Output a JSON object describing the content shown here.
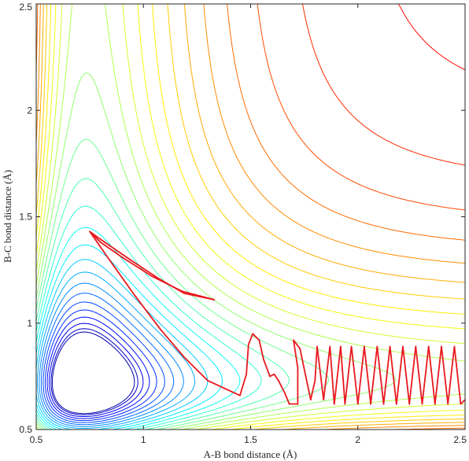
{
  "chart_data": {
    "type": "contour",
    "title": "",
    "xlabel": "A-B bond distance (Å)",
    "ylabel": "B-C bond distance (Å)",
    "xlim": [
      0.5,
      2.5
    ],
    "ylim": [
      0.5,
      2.5
    ],
    "xticks": [
      0.5,
      1,
      1.5,
      2,
      2.5
    ],
    "yticks": [
      0.5,
      1,
      1.5,
      2,
      2.5
    ],
    "x_tick_labels": [
      "0.5",
      "1",
      "1.5",
      "2",
      "2.5"
    ],
    "y_tick_labels": [
      "0.5",
      "1",
      "1.5",
      "2",
      "2.5"
    ],
    "grid": false,
    "colormap": "jet",
    "contour_line_color": "#1e3a8a",
    "trajectory_color": "#e8181e",
    "trajectory": [
      [
        0.75,
        1.43
      ],
      [
        0.82,
        1.38
      ],
      [
        0.95,
        1.29
      ],
      [
        1.07,
        1.21
      ],
      [
        1.19,
        1.14
      ],
      [
        1.33,
        1.11
      ],
      [
        1.18,
        1.15
      ],
      [
        1.04,
        1.22
      ],
      [
        0.9,
        1.31
      ],
      [
        0.8,
        1.38
      ],
      [
        0.75,
        1.43
      ],
      [
        0.84,
        1.3
      ],
      [
        0.96,
        1.13
      ],
      [
        1.08,
        0.97
      ],
      [
        1.19,
        0.84
      ],
      [
        1.3,
        0.73
      ],
      [
        1.45,
        0.66
      ],
      [
        1.48,
        0.76
      ],
      [
        1.49,
        0.9
      ],
      [
        1.51,
        0.95
      ],
      [
        1.54,
        0.92
      ],
      [
        1.56,
        0.83
      ],
      [
        1.59,
        0.75
      ],
      [
        1.61,
        0.76
      ],
      [
        1.63,
        0.73
      ],
      [
        1.66,
        0.67
      ],
      [
        1.68,
        0.62
      ],
      [
        1.72,
        0.62
      ],
      [
        1.72,
        0.79
      ],
      [
        1.7,
        0.92
      ],
      [
        1.73,
        0.88
      ],
      [
        1.78,
        0.64
      ],
      [
        1.8,
        0.73
      ],
      [
        1.81,
        0.89
      ],
      [
        1.84,
        0.64
      ],
      [
        1.87,
        0.89
      ],
      [
        1.89,
        0.62
      ],
      [
        1.92,
        0.89
      ],
      [
        1.94,
        0.62
      ],
      [
        1.97,
        0.89
      ],
      [
        2.0,
        0.62
      ],
      [
        2.03,
        0.89
      ],
      [
        2.06,
        0.62
      ],
      [
        2.09,
        0.89
      ],
      [
        2.12,
        0.62
      ],
      [
        2.15,
        0.89
      ],
      [
        2.18,
        0.62
      ],
      [
        2.21,
        0.89
      ],
      [
        2.24,
        0.62
      ],
      [
        2.27,
        0.89
      ],
      [
        2.3,
        0.62
      ],
      [
        2.33,
        0.89
      ],
      [
        2.36,
        0.62
      ],
      [
        2.39,
        0.89
      ],
      [
        2.42,
        0.62
      ],
      [
        2.45,
        0.89
      ],
      [
        2.48,
        0.62
      ],
      [
        2.5,
        0.64
      ]
    ]
  }
}
